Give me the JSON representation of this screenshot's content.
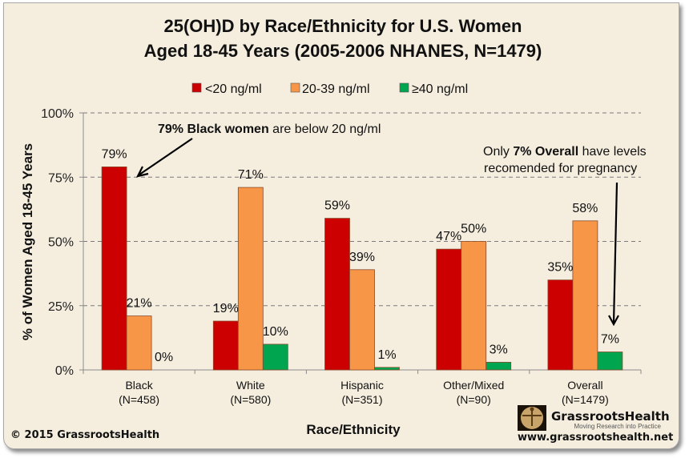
{
  "chart_data": {
    "type": "bar",
    "title_lines": [
      "25(OH)D by Race/Ethnicity for U.S. Women",
      "Aged 18-45 Years (2005-2006 NHANES, N=1479)"
    ],
    "xlabel": "Race/Ethnicity",
    "ylabel": "% of Women Aged 18-45 Years",
    "ylim": [
      0,
      100
    ],
    "yticks": [
      0,
      25,
      50,
      75,
      100
    ],
    "ytick_labels": [
      "0%",
      "25%",
      "50%",
      "75%",
      "100%"
    ],
    "grid": "horizontal-dashed",
    "legend_position": "top-center",
    "categories": [
      {
        "name": "Black",
        "n": "(N=458)"
      },
      {
        "name": "White",
        "n": "(N=580)"
      },
      {
        "name": "Hispanic",
        "n": "(N=351)"
      },
      {
        "name": "Other/Mixed",
        "n": "(N=90)"
      },
      {
        "name": "Overall",
        "n": "(N=1479)"
      }
    ],
    "series": [
      {
        "name": "<20 ng/ml",
        "color": "#cc0000",
        "values": [
          79,
          19,
          59,
          47,
          35
        ],
        "labels": [
          "79%",
          "19%",
          "59%",
          "47%",
          "35%"
        ]
      },
      {
        "name": "20-39 ng/ml",
        "color": "#f79646",
        "values": [
          21,
          71,
          39,
          50,
          58
        ],
        "labels": [
          "21%",
          "71%",
          "39%",
          "50%",
          "58%"
        ]
      },
      {
        "name": "≥40 ng/ml",
        "color": "#00a550",
        "values": [
          0,
          10,
          1,
          3,
          7
        ],
        "labels": [
          "0%",
          "10%",
          "1%",
          "3%",
          "7%"
        ]
      }
    ],
    "annotations": [
      {
        "bold": "79% Black women",
        "text": " are below 20 ng/ml",
        "target": "Black <20 ng/ml bar"
      },
      {
        "prefix": "Only ",
        "bold": "7% Overall",
        "text": " have levels",
        "line2": "recomended for pregnancy",
        "target": "Overall ≥40 ng/ml bar"
      }
    ]
  },
  "footer": {
    "copyright": "© 2015 GrassrootsHealth",
    "brand_name": "GrassrootsHealth",
    "tagline": "Moving Research into Practice",
    "url": "www.grassrootshealth.net"
  }
}
